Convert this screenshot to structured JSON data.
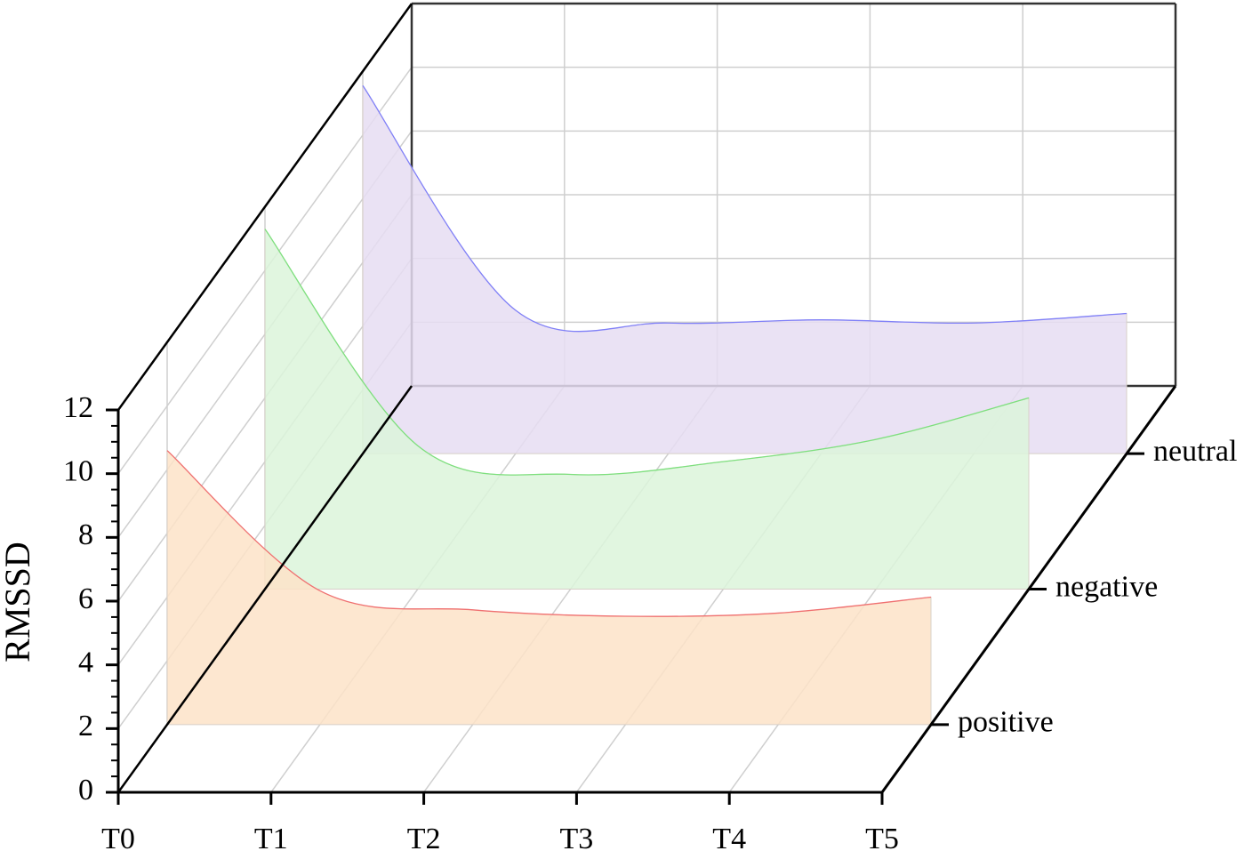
{
  "chart_data": {
    "type": "waterfall3d",
    "ylabel": "RMSSD",
    "categories": [
      "T0",
      "T1",
      "T2",
      "T3",
      "T4",
      "T5"
    ],
    "ylim": [
      0,
      12
    ],
    "yticks": [
      0,
      2,
      4,
      6,
      8,
      10,
      12
    ],
    "grid": true,
    "series": [
      {
        "name": "positive",
        "color": "#f07070",
        "fill_color": "#fde3c8",
        "values": [
          8.6,
          4.2,
          3.6,
          3.4,
          3.5,
          4.0
        ]
      },
      {
        "name": "negative",
        "color": "#7ee07e",
        "fill_color": "#dcf5da",
        "values": [
          11.3,
          4.5,
          3.6,
          4.0,
          4.7,
          6.0
        ]
      },
      {
        "name": "neutral",
        "color": "#8080f8",
        "fill_color": "#e6ddf2",
        "values": [
          11.55,
          4.5,
          4.1,
          4.2,
          4.1,
          4.4
        ]
      }
    ]
  }
}
